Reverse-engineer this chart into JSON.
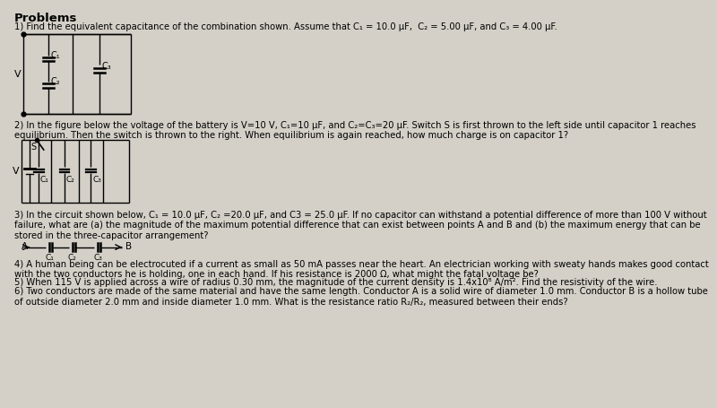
{
  "bg_color": "#d4d0c8",
  "title": "Problems",
  "problem1_text": "1) Find the equivalent capacitance of the combination shown. Assume that C₁ = 10.0 μF,  C₂ = 5.00 μF, and C₃ = 4.00 μF.",
  "problem2_text": "2) In the figure below the voltage of the battery is V=10 V, C₁=10 μF, and C₂=C₃=20 μF. Switch S is first thrown to the left side until capacitor 1 reaches\nequilibrium. Then the switch is thrown to the right. When equilibrium is again reached, how much charge is on capacitor 1?",
  "problem3_text": "3) In the circuit shown below, C₁ = 10.0 μF, C₂ =20.0 μF, and C3 = 25.0 μF. If no capacitor can withstand a potential difference of more than 100 V without\nfailure, what are (a) the magnitude of the maximum potential difference that can exist between points A and B and (b) the maximum energy that can be\nstored in the three-capacitor arrangement?",
  "problem4_text": "4) A human being can be electrocuted if a current as small as 50 mA passes near the heart. An electrician working with sweaty hands makes good contact\nwith the two conductors he is holding, one in each hand. If his resistance is 2000 Ω, what might the fatal voltage be?",
  "problem5_text": "5) When 115 V is applied across a wire of radius 0.30 mm, the magnitude of the current density is 1.4x10⁸ A/m². Find the resistivity of the wire.",
  "problem6_text": "6) Two conductors are made of the same material and have the same length. Conductor A is a solid wire of diameter 1.0 mm. Conductor B is a hollow tube\nof outside diameter 2.0 mm and inside diameter 1.0 mm. What is the resistance ratio R₂/R₂, measured between their ends?"
}
